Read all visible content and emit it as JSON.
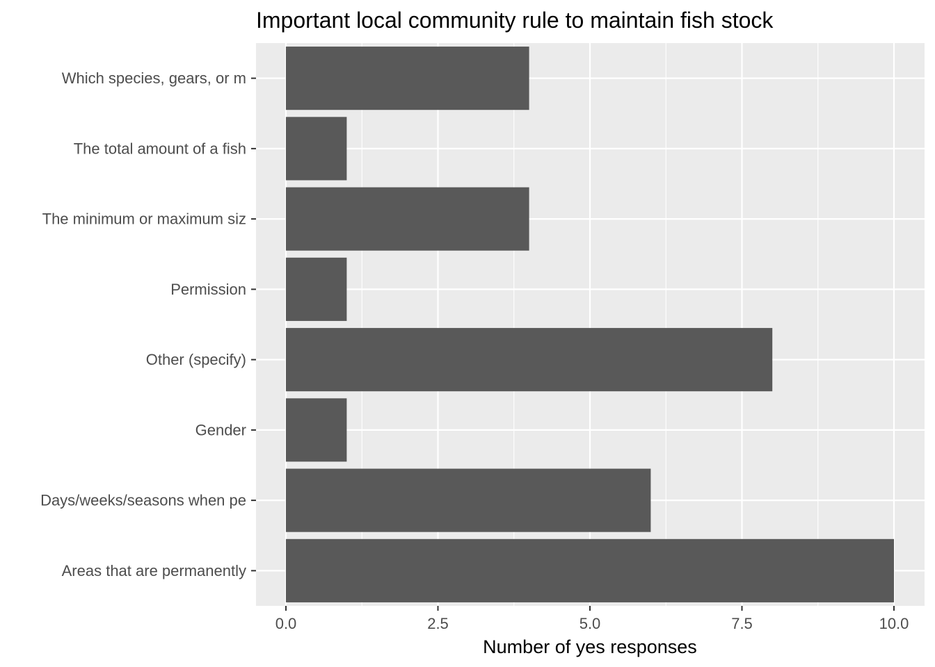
{
  "chart_data": {
    "type": "bar",
    "orientation": "horizontal",
    "title": "Important local community rule to maintain fish stock",
    "xlabel": "Number of yes responses",
    "ylabel": "",
    "categories": [
      "Which species, gears, or m",
      "The total amount of a fish",
      "The minimum or maximum siz",
      "Permission",
      "Other (specify)",
      "Gender",
      "Days/weeks/seasons when pe",
      "Areas that are permanently"
    ],
    "values": [
      4,
      1,
      4,
      1,
      8,
      1,
      6,
      10
    ],
    "xlim": [
      0,
      10
    ],
    "xticks": [
      0,
      2.5,
      5,
      7.5,
      10
    ],
    "xtick_labels": [
      "0.0",
      "2.5",
      "5.0",
      "7.5",
      "10.0"
    ],
    "grid": true,
    "colors": {
      "bar": "#595959",
      "panel": "#ebebeb",
      "grid": "#ffffff"
    }
  }
}
